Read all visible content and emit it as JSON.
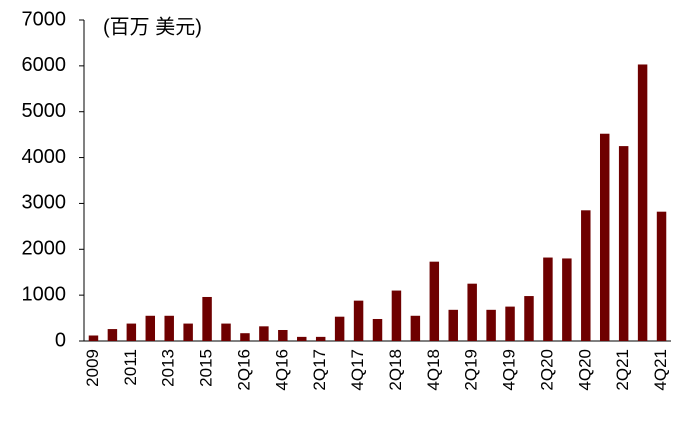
{
  "chart_data": {
    "type": "bar",
    "annotation": "(百万 美元)",
    "categories": [
      "2009",
      null,
      "2011",
      null,
      "2013",
      null,
      "2015",
      null,
      "2Q16",
      null,
      "4Q16",
      null,
      "2Q17",
      null,
      "4Q17",
      null,
      "2Q18",
      null,
      "4Q18",
      null,
      "2Q19",
      null,
      "4Q19",
      null,
      "2Q20",
      null,
      "4Q20",
      null,
      "2Q21",
      null,
      "4Q21"
    ],
    "values": [
      120,
      260,
      380,
      550,
      550,
      380,
      960,
      380,
      170,
      320,
      240,
      90,
      90,
      530,
      880,
      480,
      1100,
      550,
      1730,
      680,
      1250,
      680,
      750,
      980,
      1820,
      1800,
      2850,
      4520,
      4250,
      6030,
      2820
    ],
    "color": "#6e0000",
    "ylim": [
      0,
      7000
    ],
    "yticks": [
      0,
      1000,
      2000,
      3000,
      4000,
      5000,
      6000,
      7000
    ],
    "grid": false
  }
}
